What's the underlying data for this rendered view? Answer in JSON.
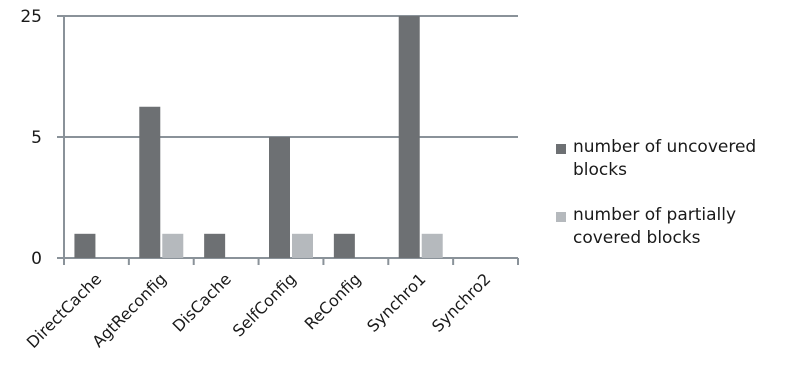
{
  "chart_data": {
    "type": "bar",
    "categories": [
      "DirectCache",
      "AgtReconfig",
      "DisCache",
      "SelfConfig",
      "ReConfig",
      "Synchro1",
      "Synchro2"
    ],
    "series": [
      {
        "name": "number of uncovered blocks",
        "values": [
          1,
          10,
          1,
          5,
          1,
          25,
          0
        ],
        "color": "#6d7073"
      },
      {
        "name": "number of partially covered blocks",
        "values": [
          0,
          1,
          0,
          1,
          0,
          1,
          0
        ],
        "color": "#b5b9bd"
      }
    ],
    "y_ticks": [
      {
        "label": "0",
        "value": 0
      },
      {
        "label": "5",
        "value": 5
      },
      {
        "label": "25",
        "value": 25
      }
    ],
    "ylim": [
      0,
      25
    ],
    "grid": true,
    "legend_position": "right",
    "title": "",
    "xlabel": "",
    "ylabel": ""
  }
}
